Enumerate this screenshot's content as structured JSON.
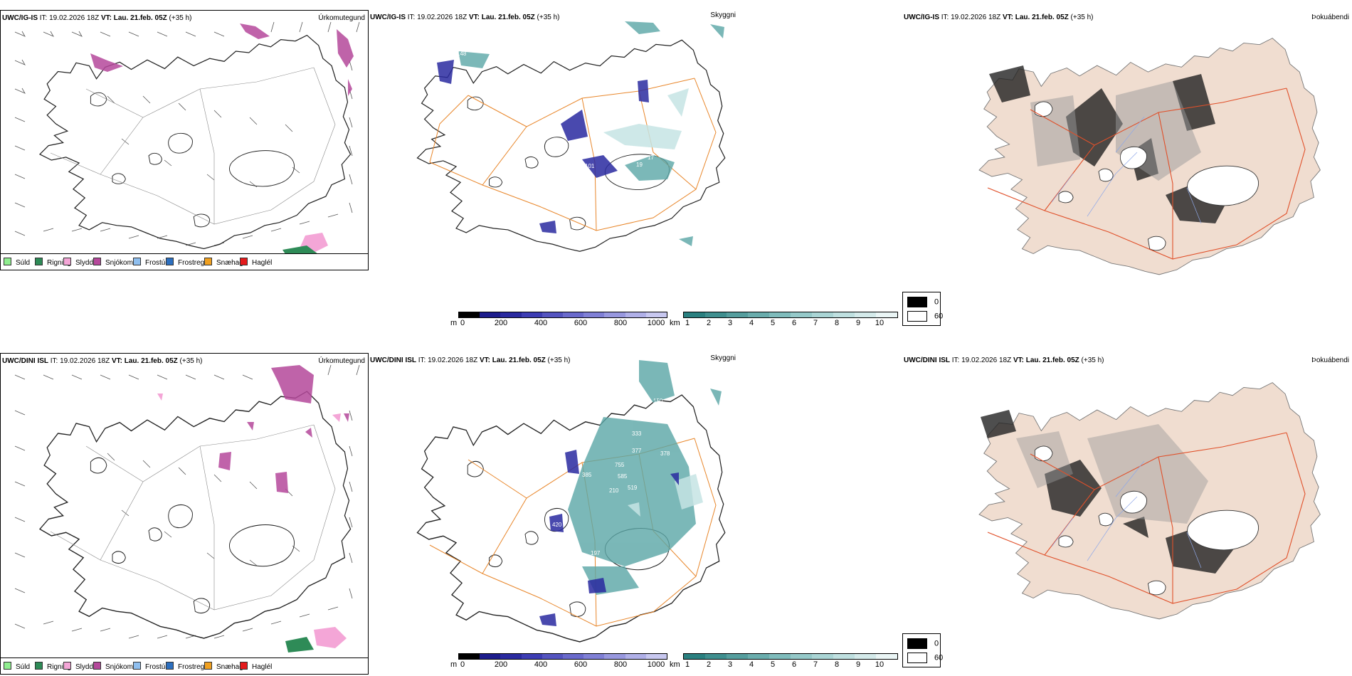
{
  "panels": [
    {
      "title_model": "UWC/IG-IS",
      "title_it": " IT: 19.02.2026 18Z ",
      "title_vt_label": "VT:",
      "title_vt": " Lau. 21.feb. 05Z",
      "title_lead": " (+35 h)",
      "right_label": "Úrkomutegund"
    },
    {
      "title_model": "UWC/IG-IS",
      "title_it": " IT: 19.02.2026 18Z ",
      "title_vt_label": "VT:",
      "title_vt": " Lau. 21.feb. 05Z",
      "title_lead": " (+35 h)",
      "right_label": "Skyggni"
    },
    {
      "title_model": "UWC/IG-IS",
      "title_it": " IT: 19.02.2026 18Z ",
      "title_vt_label": "VT:",
      "title_vt": " Lau. 21.feb. 05Z",
      "title_lead": " (+35 h)",
      "right_label": "Þokuábendi"
    },
    {
      "title_model": "UWC/DINI ISL",
      "title_it": " IT: 19.02.2026 18Z ",
      "title_vt_label": "VT:",
      "title_vt": " Lau. 21.feb. 05Z",
      "title_lead": " (+35 h)",
      "right_label": "Úrkomutegund"
    },
    {
      "title_model": "UWC/DINI ISL",
      "title_it": " IT: 19.02.2026 18Z ",
      "title_vt_label": "VT:",
      "title_vt": " Lau. 21.feb. 05Z",
      "title_lead": " (+35 h)",
      "right_label": "Skyggni"
    },
    {
      "title_model": "UWC/DINI ISL",
      "title_it": " IT: 19.02.2026 18Z ",
      "title_vt_label": "VT:",
      "title_vt": " Lau. 21.feb. 05Z",
      "title_lead": " (+35 h)",
      "right_label": "Þokuábendi"
    }
  ],
  "precip_legend": [
    {
      "label": "Súld",
      "color": "#90ee90"
    },
    {
      "label": "Rigning",
      "color": "#2e8b57"
    },
    {
      "label": "Slydda",
      "color": "#f4a6d7"
    },
    {
      "label": "Snjókoma",
      "color": "#b5489b"
    },
    {
      "label": "Frostúði",
      "color": "#8fbfef"
    },
    {
      "label": "Frostregn",
      "color": "#2c6fbf"
    },
    {
      "label": "Snæhagl",
      "color": "#f0a020"
    },
    {
      "label": "Haglél",
      "color": "#e41a1c"
    }
  ],
  "visibility_m": {
    "unit": "m",
    "ticks": [
      "0",
      "200",
      "400",
      "600",
      "800",
      "1000"
    ],
    "colors": [
      "#000000",
      "#1c1c8c",
      "#2a2aa0",
      "#3d3db4",
      "#5454c0",
      "#6a6acc",
      "#8080d6",
      "#9898df",
      "#b0b0e8",
      "#c8c8f0"
    ]
  },
  "visibility_km": {
    "unit": "km",
    "ticks": [
      "1",
      "2",
      "3",
      "4",
      "5",
      "6",
      "7",
      "8",
      "9",
      "10"
    ],
    "colors": [
      "#2a8080",
      "#3f8f8f",
      "#559e9e",
      "#6aadad",
      "#7fbcbc",
      "#95c9c9",
      "#aad5d5",
      "#bfe0e0",
      "#d4eaea",
      "#eaf5f5"
    ]
  },
  "fog_legend": [
    {
      "label": "0",
      "color": "#000000"
    },
    {
      "label": "60",
      "color": "#ffffff"
    }
  ],
  "vis_labels_top": [
    "148",
    "101",
    "17",
    "19"
  ],
  "vis_labels_bottom": [
    "150",
    "68",
    "333",
    "377",
    "378",
    "755",
    "585",
    "519",
    "210",
    "385",
    "420",
    "197",
    "325",
    "205"
  ]
}
